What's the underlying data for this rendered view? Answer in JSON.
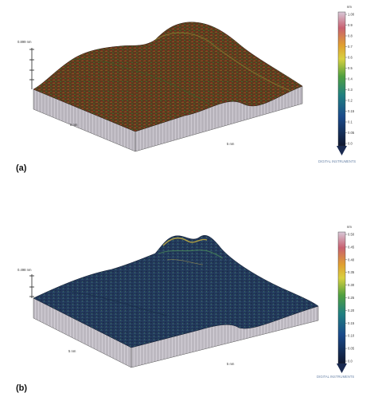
{
  "panels": {
    "a": {
      "label": "(a)",
      "z_scale_label": "0.899 nm",
      "x_label": "5 nm",
      "y_label": "5 nm",
      "colorbar_unit": "nm",
      "colorbar_ticks": [
        "1.00",
        "0.9",
        "0.8",
        "0.7",
        "0.6",
        "0.5",
        "0.4",
        "0.3",
        "0.2",
        "0.15",
        "0.1",
        "0.05",
        "0.0"
      ],
      "watermark": "DIGITAL INSTRUMENTS"
    },
    "b": {
      "label": "(b)",
      "z_scale_label": "0.498 nm",
      "x_label": "5 nm",
      "y_label": "5 nm",
      "colorbar_unit": "nm",
      "colorbar_ticks": [
        "0.50",
        "0.45",
        "0.40",
        "0.35",
        "0.30",
        "0.25",
        "0.20",
        "0.15",
        "0.10",
        "0.05",
        "0.0"
      ],
      "watermark": "DIGITAL INSTRUMENTS"
    }
  },
  "colors": {
    "surface_a": [
      "#5a2e1a",
      "#7a4a20",
      "#4a6a2a",
      "#8a6a30"
    ],
    "surface_b": [
      "#1f3552",
      "#2c4a66",
      "#3f6a5a",
      "#c8b040"
    ],
    "colorbar": [
      "#d0c0d0",
      "#c06070",
      "#e0a030",
      "#d8d040",
      "#60a040",
      "#208080",
      "#1a4a8a",
      "#182a60",
      "#101830"
    ]
  }
}
